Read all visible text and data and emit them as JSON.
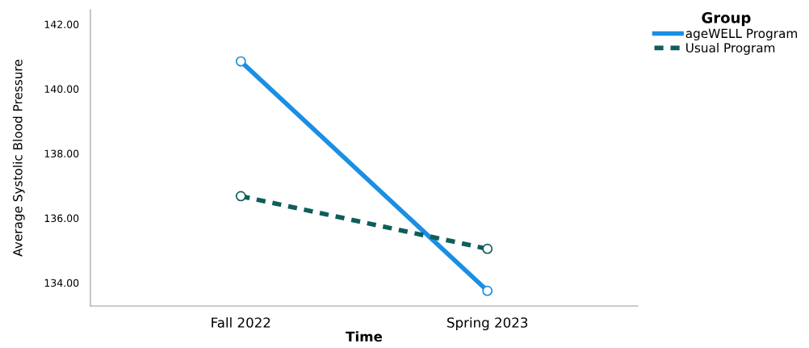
{
  "chart_data": {
    "type": "line",
    "xlabel": "Time",
    "ylabel": "Average Systolic Blood Pressure",
    "legend_title": "Group",
    "categories": [
      "Fall 2022",
      "Spring 2023"
    ],
    "series": [
      {
        "name": "ageWELL Program",
        "color": "#1a8fe3",
        "values": [
          140.85,
          133.75
        ],
        "line_style": "solid"
      },
      {
        "name": "Usual Program",
        "color": "#0e5e5a",
        "values": [
          136.68,
          135.05
        ],
        "line_style": "dashed"
      }
    ],
    "ylim": [
      133.28,
      142.45
    ],
    "yticks": [
      {
        "value": 134,
        "label": "134.00"
      },
      {
        "value": 136,
        "label": "136.00"
      },
      {
        "value": 138,
        "label": "138.00"
      },
      {
        "value": 140,
        "label": "140.00"
      },
      {
        "value": 142,
        "label": "142.00"
      }
    ],
    "marker": "circle",
    "grid": false,
    "legend": "top right"
  }
}
